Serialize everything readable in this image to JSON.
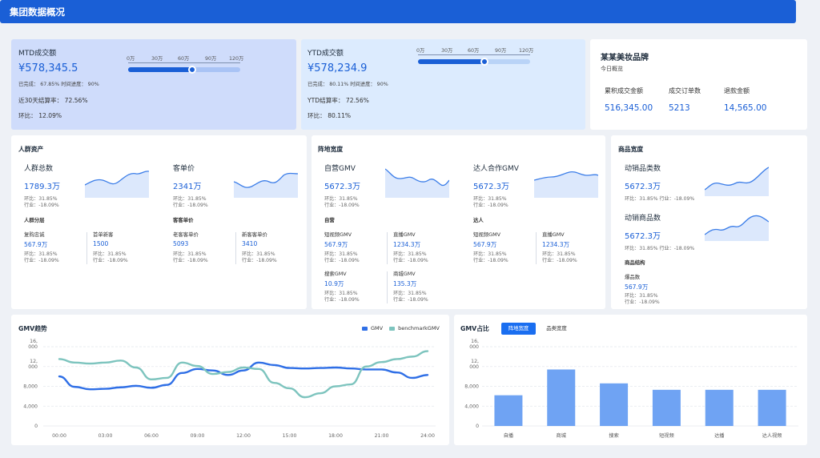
{
  "header": {
    "title": "集团数据概况"
  },
  "mtd": {
    "title": "MTD成交额",
    "value": "¥578,345.5",
    "progress_text": "已完成： 67.85%   时间进度： 90%",
    "rate_text": "近30天结算率：   72.56%",
    "ratio_text": "环比：   12.09%",
    "slider_ticks": [
      "0万",
      "30万",
      "60万",
      "90万",
      "120万"
    ],
    "slider_value": 0.68
  },
  "ytd": {
    "title": "YTD成交额",
    "value": "¥578,234.9",
    "progress_text": "已完成： 80.11%   时间进度： 90%",
    "rate_text": "YTD结算率：   72.56%",
    "ratio_text": "环比：   80.11%",
    "slider_ticks": [
      "0万",
      "30万",
      "60万",
      "90万",
      "120万"
    ],
    "slider_value": 0.59
  },
  "brand": {
    "name": "某某美妆品牌",
    "subtitle": "今日概览",
    "metrics": [
      {
        "label": "累积成交金额",
        "value": "516,345.00"
      },
      {
        "label": "成交订单数",
        "value": "5213"
      },
      {
        "label": "退款金额",
        "value": "14,565.00"
      }
    ]
  },
  "crowd": {
    "title": "人群资产",
    "total": {
      "label": "人群总数",
      "value": "1789.3万",
      "ratio": "环比：31.85%",
      "industry": "行业：-18.09%"
    },
    "price": {
      "label": "客单价",
      "value": "2341万",
      "ratio": "环比：31.85%",
      "industry": "行业：-18.09%"
    },
    "layer_title": "人群分层",
    "layers": [
      {
        "label": "复购忠诚",
        "value": "567.9万",
        "ratio": "环比：31.85%",
        "industry": "行业：-18.09%"
      },
      {
        "label": "首单新客",
        "value": "1500",
        "ratio": "环比：31.85%",
        "industry": "行业：-18.09%"
      }
    ],
    "price_title": "客客单价",
    "prices": [
      {
        "label": "老客客单价",
        "value": "5093",
        "ratio": "环比：31.85%",
        "industry": "行业：-18.09%"
      },
      {
        "label": "新客客单价",
        "value": "3410",
        "ratio": "环比：31.85%",
        "industry": "行业：-18.09%"
      }
    ]
  },
  "channel": {
    "title": "阵地宽度",
    "self": {
      "label": "自营GMV",
      "value": "5672.3万",
      "ratio": "环比：31.85%",
      "industry": "行业：-18.09%"
    },
    "talent": {
      "label": "达人合作GMV",
      "value": "5672.3万",
      "ratio": "环比：31.85%",
      "industry": "行业：-18.09%"
    },
    "self_title": "自营",
    "self_items": [
      {
        "label": "短视频GMV",
        "value": "567.9万",
        "ratio": "环比：31.85%",
        "industry": "行业：-18.09%"
      },
      {
        "label": "直播GMV",
        "value": "1234.3万",
        "ratio": "环比：31.85%",
        "industry": "行业：-18.09%"
      },
      {
        "label": "搜索GMV",
        "value": "10.9万",
        "ratio": "环比：31.85%",
        "industry": "行业：-18.09%"
      },
      {
        "label": "商城GMV",
        "value": "135.3万",
        "ratio": "环比：31.85%",
        "industry": "行业：-18.09%"
      }
    ],
    "talent_title": "达人",
    "talent_items": [
      {
        "label": "短视频GMV",
        "value": "567.9万",
        "ratio": "环比：31.85%",
        "industry": "行业：-18.09%"
      },
      {
        "label": "直播GMV",
        "value": "1234.3万",
        "ratio": "环比：31.85%",
        "industry": "行业：-18.09%"
      }
    ]
  },
  "goods": {
    "title": "商品宽度",
    "categories": {
      "label": "动销品类数",
      "value": "5672.3万",
      "note": "环比：31.85%   行业：-18.09%"
    },
    "products": {
      "label": "动销商品数",
      "value": "5672.3万",
      "note": "环比：31.85%   行业：-18.09%"
    },
    "structure_title": "商品结构",
    "hit": {
      "label": "爆品数",
      "value": "567.9万",
      "ratio": "环比：31.85%",
      "industry": "行业：-18.09%"
    }
  },
  "trend": {
    "title": "GMV趋势",
    "legend": [
      "GMV",
      "benchmarkGMV"
    ],
    "colors": {
      "gmv": "#2f6fe6",
      "bench": "#7dc4be"
    }
  },
  "share": {
    "title": "GMV占比",
    "tabs": [
      "阵地宽度",
      "品类宽度"
    ],
    "bar_color": "#6fa3f3"
  },
  "chart_data": [
    {
      "type": "line",
      "title": "GMV趋势",
      "x_ticks": [
        "00:00",
        "03:00",
        "06:00",
        "09:00",
        "12:00",
        "15:00",
        "18:00",
        "21:00",
        "24:00"
      ],
      "y_ticks": [
        "0",
        "4,000",
        "8,000",
        "12,\n000",
        "16,\n000"
      ],
      "ylim": [
        0,
        16000
      ],
      "xlim": [
        0,
        24
      ],
      "series": [
        {
          "name": "GMV",
          "x": [
            0,
            1,
            2,
            3,
            4,
            5,
            6,
            7,
            8,
            9,
            10,
            11,
            12,
            13,
            14,
            15,
            16,
            17,
            18,
            19,
            20,
            21,
            22,
            23,
            24
          ],
          "values": [
            10000,
            7900,
            7400,
            7500,
            7800,
            8100,
            7700,
            8300,
            10700,
            11500,
            11200,
            10300,
            11200,
            12800,
            12300,
            11700,
            11600,
            11700,
            11800,
            11600,
            11400,
            11400,
            10800,
            9700,
            10300
          ]
        },
        {
          "name": "benchmarkGMV",
          "x": [
            0,
            1,
            2,
            3,
            4,
            5,
            6,
            7,
            8,
            9,
            10,
            11,
            12,
            13,
            14,
            15,
            16,
            17,
            18,
            19,
            20,
            21,
            22,
            23,
            24
          ],
          "values": [
            13500,
            12800,
            12600,
            12800,
            13200,
            11800,
            9400,
            9700,
            12800,
            12100,
            10500,
            10900,
            11800,
            11500,
            8700,
            7600,
            5800,
            6600,
            8000,
            8400,
            12000,
            12900,
            13500,
            14000,
            15100
          ]
        }
      ],
      "legend": "top-right",
      "grid": true
    },
    {
      "type": "bar",
      "title": "GMV占比",
      "categories": [
        "自播",
        "商城",
        "搜索",
        "短视频",
        "达播",
        "达人视频"
      ],
      "values": [
        6200,
        11400,
        8600,
        7300,
        7300,
        7300
      ],
      "y_ticks": [
        "0",
        "4,000",
        "8,000",
        "12,\n000",
        "16,\n000"
      ],
      "ylim": [
        0,
        16000
      ],
      "grid": true
    }
  ]
}
